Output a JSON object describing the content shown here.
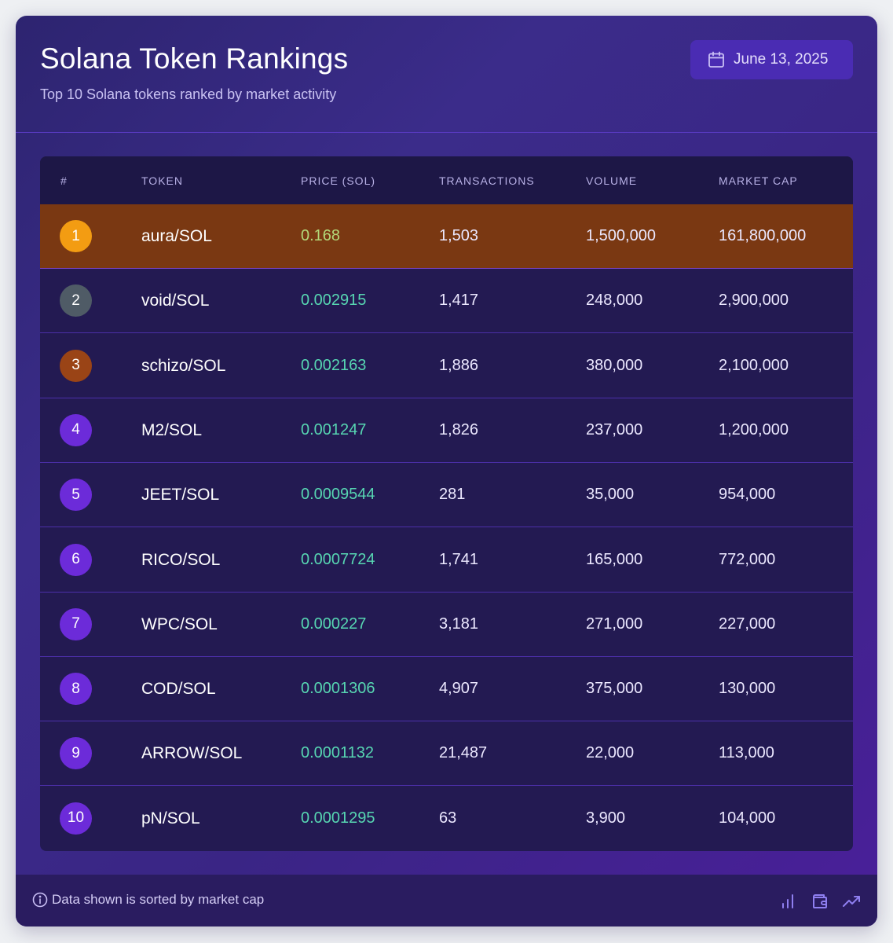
{
  "header": {
    "title": "Solana Token Rankings",
    "subtitle": "Top 10 Solana tokens ranked by market activity",
    "date": "June 13, 2025",
    "date_icon": "calendar-icon"
  },
  "table": {
    "columns": [
      "#",
      "TOKEN",
      "PRICE (SOL)",
      "TRANSACTIONS",
      "VOLUME",
      "MARKET CAP"
    ],
    "rows": [
      {
        "rank": "1",
        "token": "aura/SOL",
        "price": "0.168",
        "transactions": "1,503",
        "volume": "1,500,000",
        "market_cap": "161,800,000",
        "badge_color": "#f39c12",
        "highlighted": true
      },
      {
        "rank": "2",
        "token": "void/SOL",
        "price": "0.002915",
        "transactions": "1,417",
        "volume": "248,000",
        "market_cap": "2,900,000",
        "badge_color": "#4f5b66"
      },
      {
        "rank": "3",
        "token": "schizo/SOL",
        "price": "0.002163",
        "transactions": "1,886",
        "volume": "380,000",
        "market_cap": "2,100,000",
        "badge_color": "#9a4416"
      },
      {
        "rank": "4",
        "token": "M2/SOL",
        "price": "0.001247",
        "transactions": "1,826",
        "volume": "237,000",
        "market_cap": "1,200,000",
        "badge_color": "#6c2bd9"
      },
      {
        "rank": "5",
        "token": "JEET/SOL",
        "price": "0.0009544",
        "transactions": "281",
        "volume": "35,000",
        "market_cap": "954,000",
        "badge_color": "#6c2bd9"
      },
      {
        "rank": "6",
        "token": "RICO/SOL",
        "price": "0.0007724",
        "transactions": "1,741",
        "volume": "165,000",
        "market_cap": "772,000",
        "badge_color": "#6c2bd9"
      },
      {
        "rank": "7",
        "token": "WPC/SOL",
        "price": "0.000227",
        "transactions": "3,181",
        "volume": "271,000",
        "market_cap": "227,000",
        "badge_color": "#6c2bd9"
      },
      {
        "rank": "8",
        "token": "COD/SOL",
        "price": "0.0001306",
        "transactions": "4,907",
        "volume": "375,000",
        "market_cap": "130,000",
        "badge_color": "#6c2bd9"
      },
      {
        "rank": "9",
        "token": "ARROW/SOL",
        "price": "0.0001132",
        "transactions": "21,487",
        "volume": "22,000",
        "market_cap": "113,000",
        "badge_color": "#6c2bd9"
      },
      {
        "rank": "10",
        "token": "pN/SOL",
        "price": "0.0001295",
        "transactions": "63",
        "volume": "3,900",
        "market_cap": "104,000",
        "badge_color": "#6c2bd9"
      }
    ]
  },
  "footer": {
    "note": "Data shown is sorted by market cap",
    "info_icon": "info-icon",
    "icons": [
      "bar-chart-icon",
      "wallet-icon",
      "trending-up-icon"
    ]
  },
  "colors": {
    "accent": "#4a2cb3",
    "price_green": "#57d6b2",
    "highlight_row": "#7a3812",
    "gold": "#f39c12"
  }
}
